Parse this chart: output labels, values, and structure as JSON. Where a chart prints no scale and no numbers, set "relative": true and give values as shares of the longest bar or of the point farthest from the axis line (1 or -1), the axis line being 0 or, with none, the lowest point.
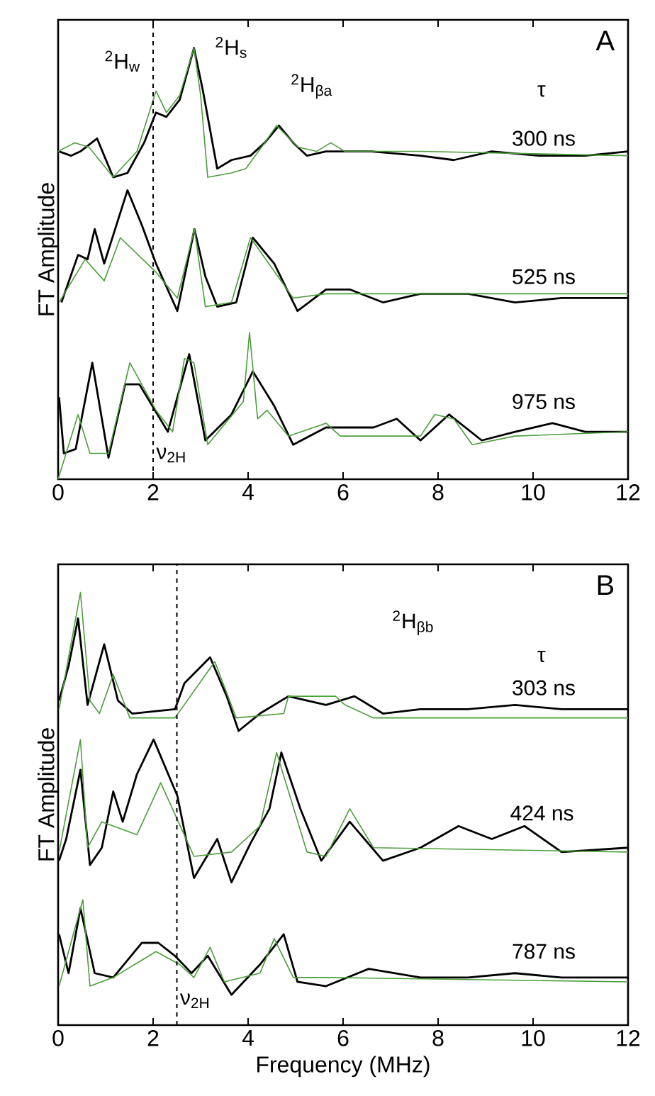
{
  "chart_data": [
    {
      "type": "line",
      "relative": true,
      "ylabel": "FT Amplitude",
      "xlim": [
        0,
        12
      ],
      "xticks": [
        0,
        2,
        4,
        6,
        8,
        10,
        12
      ],
      "tick_labels": "x",
      "ref_lines": [
        {
          "axis": "x",
          "value": 2,
          "label": "ν$_{2H}$",
          "line_style": "dashed"
        }
      ],
      "annotations": [
        "A",
        "$^{2}$H$_{s}$",
        "$^{2}$H$_{w}$",
        "$^{2}$H$_{βa}$",
        "τ",
        "300 ns",
        "525 ns",
        "975 ns"
      ],
      "series": [
        {
          "color": "#000000",
          "x": [
            0.02,
            0.27,
            0.47,
            0.82,
            0.97,
            1.16,
            1.46,
            1.81,
            2.06,
            2.28,
            2.56,
            2.86,
            3.05,
            3.35,
            3.65,
            4.05,
            4.35,
            4.65,
            4.95,
            5.24,
            5.64,
            6.14,
            6.6,
            7.63,
            8.33,
            9.13,
            10.12,
            11.1,
            12
          ],
          "values": [
            0.76,
            0.75,
            0.76,
            0.79,
            0.75,
            0.7,
            0.71,
            0.78,
            0.85,
            0.84,
            0.88,
            1.0,
            0.9,
            0.72,
            0.74,
            0.75,
            0.78,
            0.82,
            0.78,
            0.75,
            0.76,
            0.76,
            0.76,
            0.75,
            0.74,
            0.76,
            0.75,
            0.75,
            0.76
          ]
        },
        {
          "color": "#4c9e3c",
          "x": [
            0,
            0.35,
            0.65,
            1.16,
            1.66,
            2.06,
            2.28,
            2.56,
            2.86,
            3.0,
            3.15,
            3.65,
            3.95,
            4.35,
            4.6,
            5.05,
            5.44,
            5.74,
            6.04,
            7.63,
            12
          ],
          "values": [
            0.76,
            0.78,
            0.77,
            0.7,
            0.76,
            0.9,
            0.85,
            0.89,
            1.0,
            0.89,
            0.7,
            0.71,
            0.72,
            0.78,
            0.82,
            0.77,
            0.76,
            0.78,
            0.76,
            0.76,
            0.75
          ]
        },
        {
          "color": "#000000",
          "x": [
            0.07,
            0.42,
            0.62,
            0.77,
            0.97,
            1.46,
            1.76,
            2.06,
            2.51,
            2.87,
            3.1,
            3.35,
            3.75,
            4.1,
            4.55,
            5.04,
            5.64,
            6.14,
            6.84,
            7.63,
            8.63,
            9.62,
            10.6,
            12
          ],
          "values": [
            0.41,
            0.52,
            0.51,
            0.58,
            0.5,
            0.67,
            0.59,
            0.5,
            0.39,
            0.58,
            0.47,
            0.4,
            0.41,
            0.56,
            0.5,
            0.39,
            0.44,
            0.44,
            0.41,
            0.43,
            0.43,
            0.41,
            0.42,
            0.42
          ]
        },
        {
          "color": "#4c9e3c",
          "x": [
            0.02,
            0.57,
            0.97,
            1.31,
            2.06,
            2.51,
            2.87,
            3.1,
            3.65,
            4.05,
            4.95,
            5.64,
            12
          ],
          "values": [
            0.41,
            0.51,
            0.46,
            0.56,
            0.48,
            0.42,
            0.58,
            0.4,
            0.41,
            0.56,
            0.42,
            0.43,
            0.43
          ]
        },
        {
          "color": "#000000",
          "x": [
            0.02,
            0.12,
            0.37,
            0.72,
            1.06,
            1.41,
            1.71,
            2.31,
            2.76,
            3.1,
            3.65,
            4.1,
            4.55,
            4.95,
            5.64,
            6.64,
            7.13,
            7.63,
            8.23,
            8.92,
            9.62,
            10.41,
            11.1,
            12
          ],
          "values": [
            0.19,
            0.06,
            0.07,
            0.27,
            0.05,
            0.22,
            0.22,
            0.11,
            0.29,
            0.09,
            0.15,
            0.25,
            0.17,
            0.08,
            0.12,
            0.12,
            0.14,
            0.09,
            0.15,
            0.09,
            0.11,
            0.13,
            0.11,
            0.11
          ]
        },
        {
          "color": "#4c9e3c",
          "x": [
            0,
            0.42,
            0.67,
            1.06,
            1.51,
            2.06,
            2.41,
            2.66,
            2.86,
            3.15,
            3.9,
            4.03,
            4.2,
            4.4,
            4.85,
            5.64,
            5.94,
            7.63,
            7.93,
            8.33,
            8.72,
            9.62,
            12
          ],
          "values": [
            0.0,
            0.15,
            0.06,
            0.06,
            0.27,
            0.16,
            0.11,
            0.28,
            0.27,
            0.08,
            0.18,
            0.34,
            0.14,
            0.16,
            0.1,
            0.13,
            0.1,
            0.1,
            0.15,
            0.14,
            0.08,
            0.1,
            0.11
          ]
        }
      ]
    },
    {
      "type": "line",
      "relative": true,
      "ylabel": "FT Amplitude",
      "xlabel": "Frequency   (MHz)",
      "xlim": [
        0,
        12
      ],
      "xticks": [
        0,
        2,
        4,
        6,
        8,
        10,
        12
      ],
      "tick_labels": "x",
      "ref_lines": [
        {
          "axis": "x",
          "value": 2.5,
          "label": "ν$_{2H}$",
          "line_style": "dashed"
        }
      ],
      "annotations": [
        "B",
        "$^{2}$H$_{βb}$",
        "τ",
        "303 ns",
        "424 ns",
        "787 ns"
      ],
      "series": [
        {
          "color": "#000000",
          "x": [
            0.02,
            0.22,
            0.42,
            0.62,
            0.97,
            1.26,
            1.56,
            2.46,
            2.66,
            3.2,
            3.55,
            3.8,
            4.25,
            4.85,
            5.64,
            6.24,
            6.84,
            7.63,
            8.63,
            9.62,
            10.6,
            12
          ],
          "values": [
            0.75,
            0.83,
            0.94,
            0.74,
            0.88,
            0.75,
            0.72,
            0.73,
            0.79,
            0.85,
            0.76,
            0.68,
            0.72,
            0.76,
            0.74,
            0.76,
            0.72,
            0.73,
            0.73,
            0.74,
            0.73,
            0.73
          ]
        },
        {
          "color": "#4c9e3c",
          "x": [
            0.02,
            0.47,
            0.67,
            0.87,
            1.16,
            1.51,
            2.46,
            3.3,
            3.75,
            4.75,
            4.85,
            5.84,
            6.04,
            6.64,
            12
          ],
          "values": [
            0.73,
            1.0,
            0.75,
            0.72,
            0.81,
            0.71,
            0.71,
            0.84,
            0.71,
            0.72,
            0.76,
            0.76,
            0.74,
            0.71,
            0.71
          ]
        },
        {
          "color": "#000000",
          "x": [
            0.02,
            0.17,
            0.47,
            0.67,
            0.92,
            1.16,
            1.36,
            1.66,
            2.01,
            2.51,
            2.86,
            3.35,
            3.65,
            4.05,
            4.45,
            4.7,
            5.1,
            5.54,
            6.14,
            6.84,
            7.63,
            8.43,
            9.13,
            9.82,
            10.6,
            12
          ],
          "values": [
            0.38,
            0.43,
            0.59,
            0.37,
            0.41,
            0.54,
            0.47,
            0.58,
            0.66,
            0.53,
            0.34,
            0.43,
            0.33,
            0.42,
            0.5,
            0.63,
            0.5,
            0.38,
            0.47,
            0.38,
            0.41,
            0.46,
            0.43,
            0.46,
            0.4,
            0.41
          ]
        },
        {
          "color": "#4c9e3c",
          "x": [
            0.02,
            0.47,
            0.62,
            0.92,
            1.66,
            2.16,
            2.86,
            3.65,
            4.25,
            4.6,
            5.24,
            5.64,
            6.14,
            6.64,
            12
          ],
          "values": [
            0.4,
            0.66,
            0.41,
            0.47,
            0.44,
            0.56,
            0.39,
            0.4,
            0.46,
            0.63,
            0.4,
            0.39,
            0.5,
            0.41,
            0.4
          ]
        },
        {
          "color": "#000000",
          "x": [
            0.02,
            0.22,
            0.47,
            0.77,
            1.16,
            1.76,
            2.11,
            2.46,
            2.81,
            3.15,
            3.65,
            4.25,
            4.75,
            5.04,
            5.64,
            6.54,
            7.63,
            8.63,
            9.62,
            10.6,
            12
          ],
          "values": [
            0.21,
            0.12,
            0.27,
            0.12,
            0.11,
            0.19,
            0.19,
            0.16,
            0.12,
            0.16,
            0.07,
            0.14,
            0.21,
            0.1,
            0.09,
            0.13,
            0.11,
            0.11,
            0.12,
            0.11,
            0.11
          ]
        },
        {
          "color": "#4c9e3c",
          "x": [
            0.02,
            0.52,
            0.67,
            1.16,
            2.06,
            2.56,
            2.86,
            3.2,
            3.5,
            4.25,
            4.55,
            4.95,
            5.64,
            12
          ],
          "values": [
            0.09,
            0.29,
            0.09,
            0.11,
            0.17,
            0.14,
            0.11,
            0.18,
            0.1,
            0.12,
            0.2,
            0.11,
            0.11,
            0.1
          ]
        }
      ]
    }
  ]
}
